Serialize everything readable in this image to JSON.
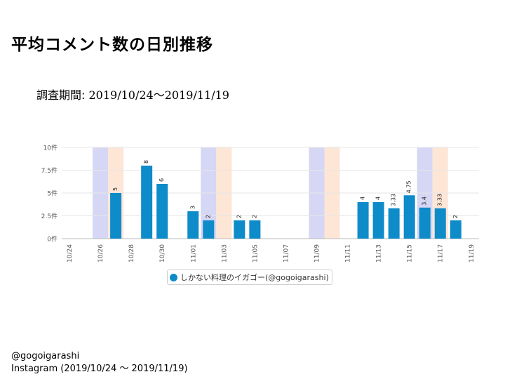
{
  "title": "平均コメント数の日別推移",
  "period": {
    "label": "調査期間:",
    "value": "2019/10/24〜2019/11/19"
  },
  "footer": {
    "account": "@gogoigarashi",
    "source": "Instagram (2019/10/24 〜 2019/11/19)"
  },
  "colors": {
    "bar": "#0e8bc9",
    "saturday": "#d6d6f5",
    "sunday": "#fde6d6",
    "grid": "#e6e6e6"
  },
  "chart_data": {
    "type": "bar",
    "title": "",
    "xlabel": "",
    "ylabel": "",
    "ylim": [
      0,
      10
    ],
    "yticks": [
      {
        "value": 0,
        "label": "0件"
      },
      {
        "value": 2.5,
        "label": "2.5件"
      },
      {
        "value": 5,
        "label": "5件"
      },
      {
        "value": 7.5,
        "label": "7.5件"
      },
      {
        "value": 10,
        "label": "10件"
      }
    ],
    "categories": [
      "10/24",
      "10/25",
      "10/26",
      "10/27",
      "10/28",
      "10/29",
      "10/30",
      "10/31",
      "11/01",
      "11/02",
      "11/03",
      "11/04",
      "11/05",
      "11/06",
      "11/07",
      "11/08",
      "11/09",
      "11/10",
      "11/11",
      "11/12",
      "11/13",
      "11/14",
      "11/15",
      "11/16",
      "11/17",
      "11/18",
      "11/19"
    ],
    "tick_labels": [
      "10/24",
      "10/26",
      "10/28",
      "10/30",
      "11/01",
      "11/03",
      "11/05",
      "11/07",
      "11/09",
      "11/11",
      "11/13",
      "11/15",
      "11/17",
      "11/19"
    ],
    "saturdays": [
      "10/26",
      "11/02",
      "11/09",
      "11/16"
    ],
    "sundays": [
      "10/27",
      "11/03",
      "11/10",
      "11/17"
    ],
    "series": [
      {
        "name": "しかない料理のイガゴー(@gogoigarashi)",
        "values": [
          null,
          null,
          null,
          5,
          null,
          8,
          6,
          null,
          3,
          2,
          null,
          2,
          2,
          null,
          null,
          null,
          null,
          null,
          null,
          4,
          4,
          3.33,
          4.75,
          3.4,
          3.33,
          2,
          null
        ],
        "labels": [
          null,
          null,
          null,
          "5",
          null,
          "8",
          "6",
          null,
          "3",
          "2",
          null,
          "2",
          "2",
          null,
          null,
          null,
          null,
          null,
          null,
          "4",
          "4",
          "3.33",
          "4.75",
          "3.4",
          "3.33",
          "2",
          null
        ]
      }
    ],
    "legend": "bottom-center"
  }
}
